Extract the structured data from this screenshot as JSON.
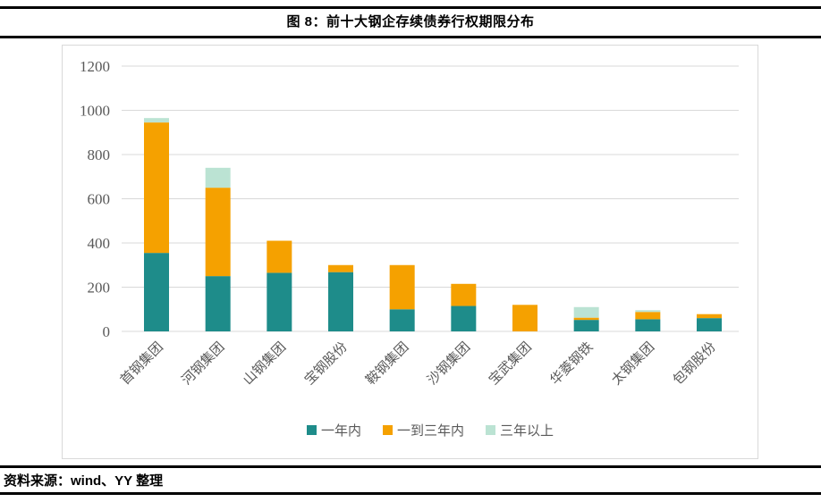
{
  "header": {
    "title": "图 8：前十大钢企存续债券行权期限分布"
  },
  "footer": {
    "source": "资料来源：wind、YY 整理"
  },
  "colors": {
    "within_one_year": "#1E8C8A",
    "one_to_three_years": "#F5A100",
    "over_three_years": "#BBE3D3",
    "gridline": "#d9d9d9",
    "axis_text": "#595959",
    "frame_border": "#d9d9d9",
    "divider": "#000000"
  },
  "chart_data": {
    "type": "bar",
    "stacked": true,
    "title": "图 8：前十大钢企存续债券行权期限分布",
    "categories": [
      "首钢集团",
      "河钢集团",
      "山钢集团",
      "宝钢股份",
      "鞍钢集团",
      "沙钢集团",
      "宝武集团",
      "华菱钢铁",
      "太钢集团",
      "包钢股份"
    ],
    "series": [
      {
        "name": "一年内",
        "color": "#1E8C8A",
        "values": [
          355,
          250,
          265,
          268,
          100,
          115,
          0,
          52,
          55,
          60
        ]
      },
      {
        "name": "一到三年内",
        "color": "#F5A100",
        "values": [
          590,
          400,
          145,
          32,
          200,
          100,
          120,
          10,
          33,
          18
        ]
      },
      {
        "name": "三年以上",
        "color": "#BBE3D3",
        "values": [
          20,
          90,
          0,
          0,
          0,
          0,
          0,
          48,
          8,
          0
        ]
      }
    ],
    "totals": [
      965,
      740,
      410,
      300,
      300,
      215,
      120,
      110,
      96,
      78
    ],
    "xlabel": "",
    "ylabel": "",
    "ylim": [
      0,
      1200
    ],
    "ytick_step": 200,
    "yticks": [
      0,
      200,
      400,
      600,
      800,
      1000,
      1200
    ],
    "grid": true,
    "legend_position": "bottom"
  }
}
